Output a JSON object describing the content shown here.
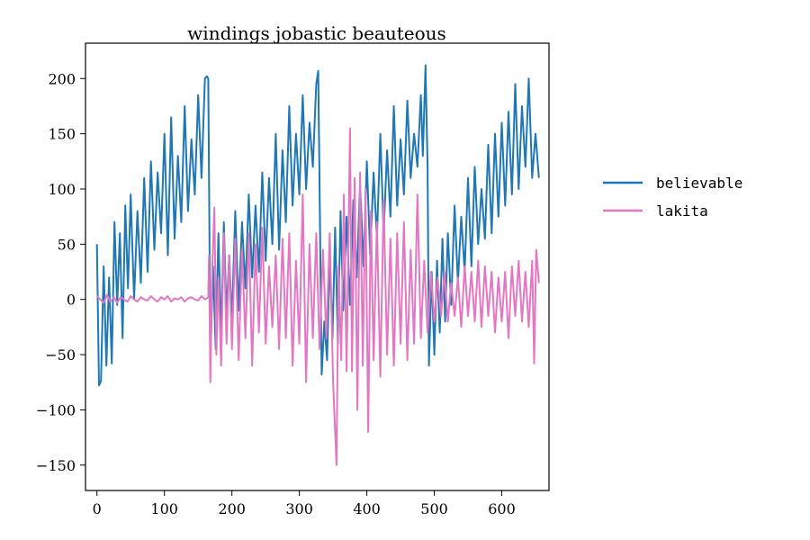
{
  "chart_data": {
    "type": "line",
    "title": "windings jobastic beauteous",
    "xlabel": "",
    "ylabel": "",
    "xlim": [
      -17,
      670
    ],
    "ylim": [
      -173,
      232
    ],
    "xticks": [
      0,
      100,
      200,
      300,
      400,
      500,
      600
    ],
    "yticks": [
      -150,
      -100,
      -50,
      0,
      50,
      100,
      150,
      200
    ],
    "ytick_labels": [
      "−150",
      "−100",
      "−50",
      "0",
      "50",
      "100",
      "150",
      "200"
    ],
    "grid": false,
    "legend_position": "outside right",
    "series": [
      {
        "name": "believable",
        "color": "#1f77b4",
        "keyframes": [
          [
            0,
            50
          ],
          [
            3,
            -78
          ],
          [
            6,
            -74
          ],
          [
            10,
            30
          ],
          [
            14,
            -60
          ],
          [
            18,
            20
          ],
          [
            22,
            -58
          ],
          [
            26,
            70
          ],
          [
            30,
            -5
          ],
          [
            34,
            60
          ],
          [
            38,
            -35
          ],
          [
            42,
            85
          ],
          [
            46,
            10
          ],
          [
            50,
            95
          ],
          [
            55,
            0
          ],
          [
            60,
            80
          ],
          [
            65,
            15
          ],
          [
            70,
            110
          ],
          [
            75,
            25
          ],
          [
            80,
            125
          ],
          [
            85,
            45
          ],
          [
            90,
            115
          ],
          [
            95,
            60
          ],
          [
            100,
            150
          ],
          [
            105,
            40
          ],
          [
            110,
            165
          ],
          [
            115,
            55
          ],
          [
            120,
            130
          ],
          [
            125,
            70
          ],
          [
            130,
            175
          ],
          [
            135,
            80
          ],
          [
            140,
            145
          ],
          [
            145,
            95
          ],
          [
            150,
            185
          ],
          [
            155,
            110
          ],
          [
            160,
            200
          ],
          [
            163,
            202
          ],
          [
            165,
            200
          ],
          [
            167,
            40
          ],
          [
            168,
            -55
          ],
          [
            172,
            30
          ],
          [
            176,
            -45
          ],
          [
            180,
            60
          ],
          [
            184,
            -35
          ],
          [
            188,
            70
          ],
          [
            192,
            -15
          ],
          [
            196,
            40
          ],
          [
            200,
            -20
          ],
          [
            205,
            80
          ],
          [
            210,
            -10
          ],
          [
            215,
            70
          ],
          [
            220,
            10
          ],
          [
            225,
            95
          ],
          [
            230,
            20
          ],
          [
            235,
            85
          ],
          [
            240,
            25
          ],
          [
            245,
            115
          ],
          [
            250,
            35
          ],
          [
            255,
            110
          ],
          [
            260,
            50
          ],
          [
            265,
            150
          ],
          [
            270,
            45
          ],
          [
            275,
            135
          ],
          [
            280,
            70
          ],
          [
            285,
            175
          ],
          [
            290,
            85
          ],
          [
            295,
            150
          ],
          [
            300,
            95
          ],
          [
            305,
            185
          ],
          [
            310,
            100
          ],
          [
            315,
            160
          ],
          [
            320,
            120
          ],
          [
            325,
            195
          ],
          [
            328,
            207
          ],
          [
            330,
            100
          ],
          [
            333,
            -68
          ],
          [
            337,
            -20
          ],
          [
            341,
            -55
          ],
          [
            345,
            40
          ],
          [
            349,
            -35
          ],
          [
            353,
            65
          ],
          [
            357,
            -40
          ],
          [
            361,
            80
          ],
          [
            365,
            -10
          ],
          [
            370,
            75
          ],
          [
            375,
            -5
          ],
          [
            380,
            90
          ],
          [
            385,
            20
          ],
          [
            390,
            105
          ],
          [
            395,
            30
          ],
          [
            400,
            125
          ],
          [
            405,
            40
          ],
          [
            410,
            115
          ],
          [
            415,
            55
          ],
          [
            420,
            150
          ],
          [
            425,
            60
          ],
          [
            430,
            135
          ],
          [
            435,
            75
          ],
          [
            440,
            175
          ],
          [
            445,
            85
          ],
          [
            450,
            145
          ],
          [
            455,
            95
          ],
          [
            460,
            180
          ],
          [
            465,
            110
          ],
          [
            470,
            150
          ],
          [
            475,
            120
          ],
          [
            480,
            185
          ],
          [
            483,
            130
          ],
          [
            487,
            212
          ],
          [
            490,
            120
          ],
          [
            492,
            -60
          ],
          [
            496,
            25
          ],
          [
            500,
            -50
          ],
          [
            504,
            35
          ],
          [
            508,
            -30
          ],
          [
            512,
            55
          ],
          [
            516,
            -20
          ],
          [
            520,
            60
          ],
          [
            525,
            -5
          ],
          [
            530,
            85
          ],
          [
            535,
            15
          ],
          [
            540,
            75
          ],
          [
            545,
            25
          ],
          [
            550,
            110
          ],
          [
            555,
            30
          ],
          [
            560,
            120
          ],
          [
            565,
            50
          ],
          [
            570,
            100
          ],
          [
            575,
            55
          ],
          [
            580,
            140
          ],
          [
            585,
            60
          ],
          [
            590,
            150
          ],
          [
            595,
            75
          ],
          [
            600,
            160
          ],
          [
            605,
            85
          ],
          [
            610,
            170
          ],
          [
            615,
            95
          ],
          [
            620,
            195
          ],
          [
            625,
            100
          ],
          [
            630,
            175
          ],
          [
            635,
            120
          ],
          [
            640,
            200
          ],
          [
            645,
            110
          ],
          [
            650,
            150
          ],
          [
            655,
            110
          ]
        ]
      },
      {
        "name": "lakita",
        "color": "#e377c2",
        "keyframes": [
          [
            0,
            3
          ],
          [
            5,
            0
          ],
          [
            10,
            -3
          ],
          [
            15,
            4
          ],
          [
            20,
            -2
          ],
          [
            25,
            2
          ],
          [
            30,
            -3
          ],
          [
            35,
            2
          ],
          [
            40,
            0
          ],
          [
            45,
            -2
          ],
          [
            50,
            3
          ],
          [
            55,
            0
          ],
          [
            60,
            -2
          ],
          [
            65,
            2
          ],
          [
            70,
            0
          ],
          [
            75,
            -1
          ],
          [
            80,
            3
          ],
          [
            85,
            0
          ],
          [
            90,
            -2
          ],
          [
            95,
            2
          ],
          [
            100,
            0
          ],
          [
            105,
            3
          ],
          [
            110,
            -2
          ],
          [
            115,
            1
          ],
          [
            120,
            0
          ],
          [
            125,
            2
          ],
          [
            130,
            -2
          ],
          [
            135,
            1
          ],
          [
            140,
            2
          ],
          [
            145,
            0
          ],
          [
            150,
            -1
          ],
          [
            155,
            3
          ],
          [
            160,
            0
          ],
          [
            165,
            2
          ],
          [
            166,
            40
          ],
          [
            168,
            -75
          ],
          [
            171,
            30
          ],
          [
            174,
            83
          ],
          [
            177,
            -50
          ],
          [
            180,
            20
          ],
          [
            184,
            -60
          ],
          [
            188,
            60
          ],
          [
            192,
            -40
          ],
          [
            196,
            40
          ],
          [
            200,
            -45
          ],
          [
            205,
            55
          ],
          [
            210,
            -55
          ],
          [
            215,
            45
          ],
          [
            220,
            -35
          ],
          [
            225,
            60
          ],
          [
            230,
            -60
          ],
          [
            235,
            50
          ],
          [
            240,
            -30
          ],
          [
            245,
            65
          ],
          [
            250,
            -40
          ],
          [
            255,
            30
          ],
          [
            260,
            -25
          ],
          [
            265,
            40
          ],
          [
            270,
            -45
          ],
          [
            275,
            55
          ],
          [
            280,
            -35
          ],
          [
            285,
            60
          ],
          [
            290,
            -60
          ],
          [
            295,
            35
          ],
          [
            300,
            -40
          ],
          [
            305,
            95
          ],
          [
            310,
            -75
          ],
          [
            315,
            50
          ],
          [
            320,
            -35
          ],
          [
            325,
            60
          ],
          [
            330,
            -45
          ],
          [
            335,
            45
          ],
          [
            340,
            -35
          ],
          [
            345,
            60
          ],
          [
            350,
            -75
          ],
          [
            355,
            -150
          ],
          [
            358,
            30
          ],
          [
            362,
            -55
          ],
          [
            366,
            95
          ],
          [
            370,
            -65
          ],
          [
            375,
            155
          ],
          [
            378,
            -65
          ],
          [
            382,
            110
          ],
          [
            386,
            -100
          ],
          [
            390,
            115
          ],
          [
            394,
            -60
          ],
          [
            398,
            100
          ],
          [
            402,
            -120
          ],
          [
            406,
            80
          ],
          [
            410,
            -55
          ],
          [
            415,
            70
          ],
          [
            420,
            -70
          ],
          [
            425,
            90
          ],
          [
            430,
            -50
          ],
          [
            435,
            55
          ],
          [
            440,
            -60
          ],
          [
            445,
            60
          ],
          [
            450,
            -40
          ],
          [
            455,
            70
          ],
          [
            460,
            -55
          ],
          [
            465,
            45
          ],
          [
            470,
            -40
          ],
          [
            475,
            95
          ],
          [
            480,
            -35
          ],
          [
            485,
            35
          ],
          [
            490,
            -30
          ],
          [
            495,
            25
          ],
          [
            500,
            -20
          ],
          [
            505,
            20
          ],
          [
            510,
            -15
          ],
          [
            515,
            25
          ],
          [
            520,
            -20
          ],
          [
            525,
            15
          ],
          [
            530,
            -15
          ],
          [
            535,
            20
          ],
          [
            540,
            -25
          ],
          [
            545,
            30
          ],
          [
            550,
            -15
          ],
          [
            555,
            25
          ],
          [
            560,
            -20
          ],
          [
            565,
            35
          ],
          [
            570,
            -25
          ],
          [
            575,
            30
          ],
          [
            580,
            -15
          ],
          [
            585,
            25
          ],
          [
            590,
            -30
          ],
          [
            595,
            20
          ],
          [
            600,
            -20
          ],
          [
            605,
            25
          ],
          [
            610,
            -35
          ],
          [
            615,
            30
          ],
          [
            620,
            -15
          ],
          [
            625,
            35
          ],
          [
            630,
            -20
          ],
          [
            635,
            25
          ],
          [
            640,
            -25
          ],
          [
            645,
            35
          ],
          [
            648,
            -58
          ],
          [
            651,
            45
          ],
          [
            655,
            15
          ]
        ]
      }
    ]
  }
}
